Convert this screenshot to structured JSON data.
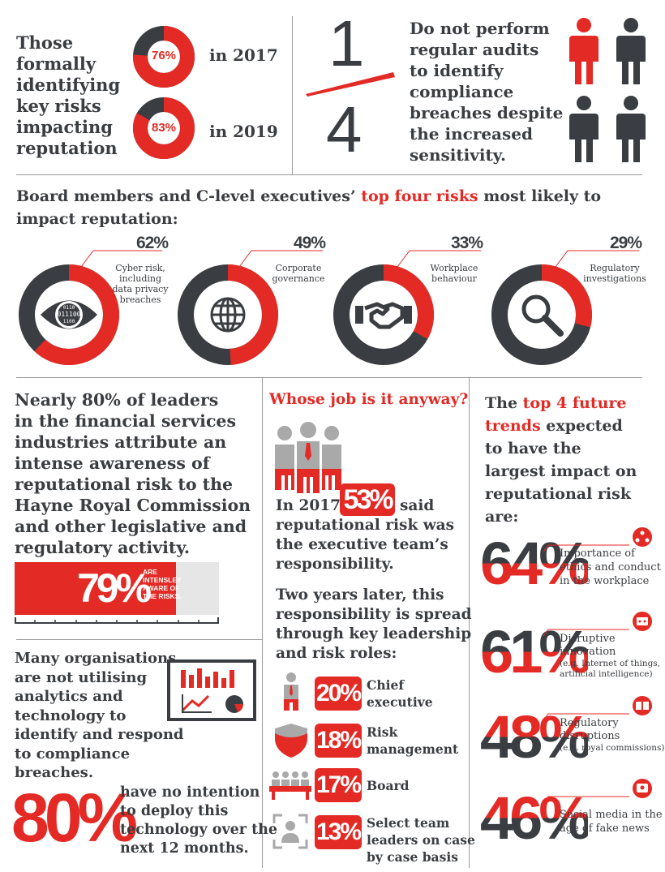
{
  "colors": {
    "red": "#e42a25",
    "dark": "#3a3d41",
    "grey": "#9a9a9a"
  },
  "top_left": {
    "text_lines": [
      "Those",
      "formally",
      "identifying",
      "key risks",
      "impacting",
      "reputation"
    ],
    "donut_2017": {
      "pct_label": "76%",
      "value": 0.76,
      "year": "in 2017"
    },
    "donut_2019": {
      "pct_label": "83%",
      "value": 0.83,
      "year": "in 2019"
    }
  },
  "fraction": {
    "numerator": "1",
    "denominator": "4",
    "text_lines": [
      "Do not perform",
      "regular audits",
      "to identify",
      "compliance",
      "breaches despite",
      "the increased",
      "sensitivity."
    ]
  },
  "top_risks": {
    "heading_start": "Board members and C-level executives’ ",
    "heading_highlight": "top four risks",
    "heading_end": " most likely to",
    "heading_line2": "impact reputation:",
    "items": [
      {
        "pct": "62%",
        "value": 0.62,
        "label_lines": [
          "Cyber risk,",
          "including",
          "data privacy",
          "breaches"
        ],
        "icon": "eye-binary-icon"
      },
      {
        "pct": "49%",
        "value": 0.49,
        "label_lines": [
          "Corporate",
          "governance"
        ],
        "icon": "globe-icon"
      },
      {
        "pct": "33%",
        "value": 0.33,
        "label_lines": [
          "Workplace",
          "behaviour"
        ],
        "icon": "handshake-icon"
      },
      {
        "pct": "29%",
        "value": 0.29,
        "label_lines": [
          "Regulatory",
          "investigations"
        ],
        "icon": "magnifier-icon"
      }
    ]
  },
  "leaders": {
    "text_lines": [
      "Nearly 80% of leaders",
      "in the financial services",
      "industries attribute an",
      "intense awareness of",
      "reputational risk to the",
      "Hayne Royal Commission",
      "and other legislative and",
      "regulatory activity."
    ],
    "bar_pct": "79%",
    "bar_value": 0.79,
    "bar_label_lines": [
      "ARE",
      "INTENSLEY",
      "AWARE OF",
      "THE RISKS."
    ]
  },
  "analytics": {
    "text_lines": [
      "Many organisations",
      "are not utilising",
      "analytics and",
      "technology to",
      "identify and respond",
      "to compliance",
      "breaches."
    ],
    "big_pct": "80%",
    "note_lines": [
      "have no intention",
      "to deploy this",
      "technology over the",
      "next 12 months."
    ]
  },
  "whose_job": {
    "heading": "Whose job is it anyway?",
    "line1_pre": "In 2017,",
    "line1_pct": "53%",
    "line1_post": "said",
    "line_rest": [
      "reputational risk was",
      "the executive team’s",
      "responsibility."
    ],
    "two_years": [
      "Two years later, this",
      "responsibility is spread",
      "through key leadership",
      "and risk roles:"
    ],
    "roles": [
      {
        "pct": "20%",
        "label_lines": [
          "Chief",
          "executive"
        ],
        "icon": "executive-icon"
      },
      {
        "pct": "18%",
        "label_lines": [
          "Risk",
          "management"
        ],
        "icon": "shield-icon"
      },
      {
        "pct": "17%",
        "label_lines": [
          "Board"
        ],
        "icon": "board-icon"
      },
      {
        "pct": "13%",
        "label_lines": [
          "Select team",
          "leaders on case",
          "by case basis"
        ],
        "icon": "team-leader-icon"
      }
    ]
  },
  "trends": {
    "heading_pre": "The ",
    "heading_red1": "top 4 future",
    "heading_red2": "trends",
    "heading_rest1": " expected",
    "heading_lines": [
      "to have the",
      "largest impact on",
      "reputational risk are:"
    ],
    "items": [
      {
        "pct": "64%",
        "label_lines": [
          "Importance of",
          "ethics and conduct",
          "in the workplace"
        ],
        "sub": "",
        "icon": "people-network-icon"
      },
      {
        "pct": "61%",
        "label_lines": [
          "Disruptive",
          "innovation"
        ],
        "sub": "(e.g. Internet of things,|artificial intelligence)",
        "icon": "robot-icon"
      },
      {
        "pct": "48%",
        "label_lines": [
          "Regulatory",
          "disruptions"
        ],
        "sub": "(e.g. royal commissions)",
        "icon": "book-icon"
      },
      {
        "pct": "46%",
        "label_lines": [
          "Social media in the",
          "age of fake news"
        ],
        "sub": "",
        "icon": "social-media-icon"
      }
    ]
  }
}
